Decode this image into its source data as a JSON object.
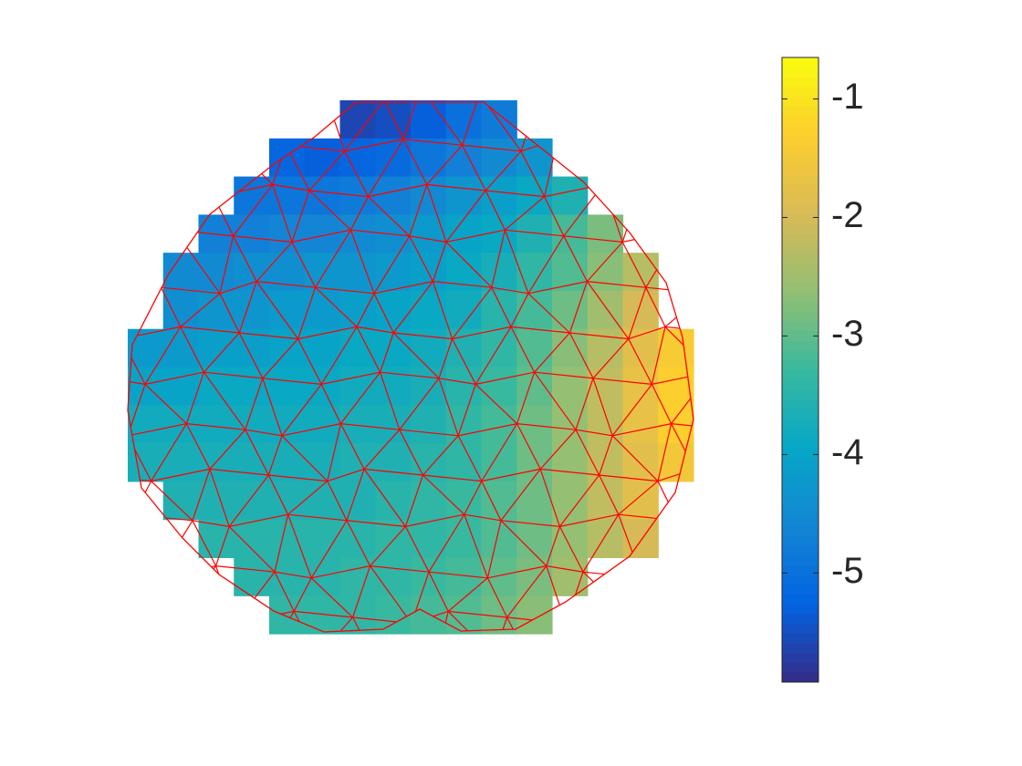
{
  "chart_data": {
    "type": "heatmap",
    "colormap": "parula",
    "z": [
      [
        null,
        null,
        null,
        null,
        null,
        null,
        -5.6,
        -5.5,
        -5.3,
        -5.0,
        -4.8,
        null,
        null,
        null,
        null,
        null
      ],
      [
        null,
        null,
        null,
        null,
        -5.2,
        -5.3,
        -5.2,
        -5.1,
        -4.9,
        -4.7,
        -4.5,
        -4.3,
        null,
        null,
        null,
        null
      ],
      [
        null,
        null,
        null,
        -4.9,
        -4.9,
        -4.9,
        -4.8,
        -4.7,
        -4.5,
        -4.3,
        -4.1,
        -3.9,
        -3.6,
        null,
        null,
        null
      ],
      [
        null,
        null,
        -4.7,
        -4.7,
        -4.6,
        -4.6,
        -4.5,
        -4.4,
        -4.2,
        -4.0,
        -3.9,
        -3.6,
        -3.2,
        -2.8,
        null,
        null
      ],
      [
        null,
        -4.5,
        -4.5,
        -4.4,
        -4.4,
        -4.3,
        -4.3,
        -4.2,
        -4.1,
        -3.9,
        -3.7,
        -3.4,
        -3.1,
        -2.7,
        -2.3,
        null
      ],
      [
        null,
        -4.4,
        -4.3,
        -4.3,
        -4.2,
        -4.2,
        -4.1,
        -4.0,
        -3.9,
        -3.8,
        -3.5,
        -3.2,
        -2.9,
        -2.5,
        -2.0,
        null
      ],
      [
        -4.2,
        -4.2,
        -4.1,
        -4.1,
        -4.0,
        -4.0,
        -3.9,
        -3.9,
        -3.8,
        -3.6,
        -3.4,
        -3.1,
        -2.7,
        -2.3,
        -1.8,
        -1.4
      ],
      [
        -4.0,
        -4.0,
        -3.9,
        -3.9,
        -3.9,
        -3.9,
        -3.8,
        -3.8,
        -3.7,
        -3.5,
        -3.3,
        -3.0,
        -2.6,
        -2.2,
        -1.7,
        -1.3
      ],
      [
        -3.8,
        -3.8,
        -3.8,
        -3.8,
        -3.8,
        -3.8,
        -3.7,
        -3.7,
        -3.6,
        -3.4,
        -3.2,
        -2.9,
        -2.6,
        -2.2,
        -1.7,
        -1.3
      ],
      [
        -3.7,
        -3.7,
        -3.7,
        -3.7,
        -3.7,
        -3.7,
        -3.6,
        -3.6,
        -3.5,
        -3.4,
        -3.2,
        -2.9,
        -2.6,
        -2.2,
        -1.8,
        -1.5
      ],
      [
        null,
        -3.6,
        -3.6,
        -3.6,
        -3.6,
        -3.6,
        -3.6,
        -3.5,
        -3.4,
        -3.3,
        -3.1,
        -2.9,
        -2.6,
        -2.2,
        -1.8,
        null
      ],
      [
        null,
        null,
        -3.5,
        -3.5,
        -3.5,
        -3.5,
        -3.5,
        -3.4,
        -3.4,
        -3.3,
        -3.1,
        -2.9,
        -2.6,
        -2.3,
        -2.0,
        null
      ],
      [
        null,
        null,
        null,
        -3.5,
        -3.5,
        -3.5,
        -3.4,
        -3.4,
        -3.3,
        -3.2,
        -3.0,
        -2.8,
        -2.5,
        null,
        null,
        null
      ],
      [
        null,
        null,
        null,
        null,
        -3.4,
        -3.4,
        -3.4,
        -3.3,
        -3.2,
        -3.1,
        -2.9,
        -2.7,
        null,
        null,
        null,
        null
      ]
    ],
    "clim": [
      -5.92,
      -0.65
    ],
    "cticks": [
      -5,
      -4,
      -3,
      -2,
      -1
    ]
  }
}
